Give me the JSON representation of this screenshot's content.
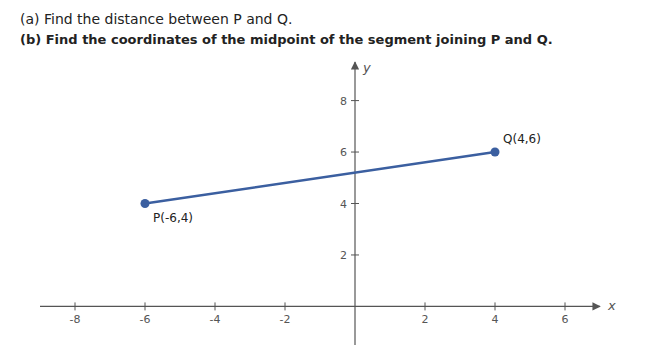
{
  "chart_data": {
    "type": "line",
    "title": "(a) Find the distance between P and Q.",
    "subtitle": "(b) Find the coordinates of the midpoint of the segment joining P and Q.",
    "x_label": "x",
    "y_label": "y",
    "x": [
      -6,
      4
    ],
    "values": [
      4,
      6
    ],
    "annotations": [
      "P(-6,4)",
      "Q(4,6)"
    ],
    "color": "#3b5fa0",
    "marker": "circle",
    "xlim": [
      -9,
      7
    ],
    "ylim": [
      -1.5,
      9.5
    ],
    "xticks": [
      -8,
      -6,
      -4,
      -2,
      2,
      4,
      6
    ],
    "yticks": [
      2,
      4,
      6,
      8
    ]
  }
}
